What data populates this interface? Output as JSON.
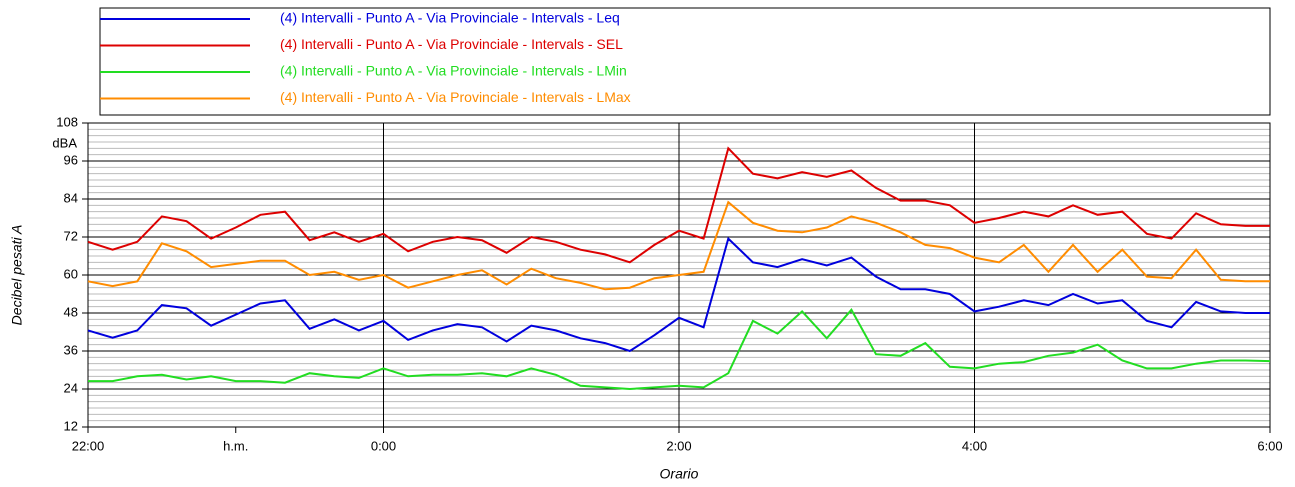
{
  "chart_data": {
    "type": "line",
    "y_label": "Decibel pesati A",
    "y_unit": "dBA",
    "x_label": "Orario",
    "x": [
      "22:00",
      "22:10",
      "22:20",
      "22:30",
      "22:40",
      "22:50",
      "23:00",
      "23:10",
      "23:20",
      "23:30",
      "23:40",
      "23:50",
      "0:00",
      "0:10",
      "0:20",
      "0:30",
      "0:40",
      "0:50",
      "1:00",
      "1:10",
      "1:20",
      "1:30",
      "1:40",
      "1:50",
      "2:00",
      "2:10",
      "2:20",
      "2:30",
      "2:40",
      "2:50",
      "3:00",
      "3:10",
      "3:20",
      "3:30",
      "3:40",
      "3:50",
      "4:00",
      "4:10",
      "4:20",
      "4:30",
      "4:40",
      "4:50",
      "5:00",
      "5:10",
      "5:20",
      "5:30",
      "5:40",
      "5:50",
      "6:00"
    ],
    "xlim": [
      "22:00",
      "6:00"
    ],
    "xticks": [
      "22:00",
      {
        "value": "23:00",
        "label": "h.m."
      },
      "0:00",
      "2:00",
      "4:00",
      "6:00"
    ],
    "ylim": [
      12,
      108
    ],
    "yticks": [
      12,
      24,
      36,
      48,
      60,
      72,
      84,
      96,
      108
    ],
    "yminor_step": 2,
    "grid": true,
    "series": [
      {
        "name": "(4) Intervalli - Punto A - Via Provinciale - Intervals - Leq",
        "color": "#0000dd",
        "values": [
          42.5,
          40.2,
          42.5,
          50.5,
          49.5,
          44,
          47.5,
          51,
          52,
          43,
          46,
          42.5,
          45.5,
          39.5,
          42.5,
          44.5,
          43.5,
          39,
          44,
          42.5,
          40,
          38.5,
          36,
          41,
          46.5,
          43.5,
          71.5,
          64,
          62.5,
          65,
          63,
          65.5,
          59.5,
          55.5,
          55.5,
          54,
          48.5,
          50,
          52,
          50.5,
          54,
          51,
          52,
          45.5,
          43.5,
          51.5,
          48.5,
          48,
          48
        ]
      },
      {
        "name": "(4) Intervalli - Punto A - Via Provinciale - Intervals - SEL",
        "color": "#dd0000",
        "values": [
          70.5,
          68,
          70.5,
          78.5,
          77,
          71.5,
          75,
          79,
          80,
          71,
          73.5,
          70.5,
          73,
          67.5,
          70.5,
          72,
          71,
          67,
          72,
          70.5,
          68,
          66.5,
          64,
          69.5,
          74,
          71.5,
          100,
          92,
          90.5,
          92.5,
          91,
          93,
          87.5,
          83.5,
          83.5,
          82,
          76.5,
          78,
          80,
          78.5,
          82,
          79,
          80,
          73,
          71.5,
          79.5,
          76,
          75.5,
          75.5
        ]
      },
      {
        "name": "(4) Intervalli - Punto A - Via Provinciale - Intervals - LMin",
        "color": "#22dd22",
        "values": [
          26.5,
          26.5,
          28,
          28.5,
          27,
          28,
          26.5,
          26.5,
          26,
          29,
          28,
          27.5,
          30.5,
          28,
          28.5,
          28.5,
          29,
          28,
          30.5,
          28.5,
          25,
          24.5,
          24,
          24.5,
          25,
          24.5,
          29,
          45.5,
          41.5,
          48.5,
          40,
          49,
          35,
          34.5,
          38.5,
          31,
          30.5,
          32,
          32.5,
          34.5,
          35.5,
          38,
          33,
          30.5,
          30.5,
          32,
          33,
          33,
          32.8
        ]
      },
      {
        "name": "(4) Intervalli - Punto A - Via Provinciale - Intervals - LMax",
        "color": "#ff8c00",
        "values": [
          58,
          56.5,
          58,
          70,
          67.5,
          62.5,
          63.5,
          64.5,
          64.5,
          60,
          61,
          58.5,
          60,
          56,
          58,
          60,
          61.5,
          57,
          62,
          59,
          57.5,
          55.5,
          56,
          59,
          60,
          61,
          83,
          76.5,
          74,
          73.5,
          75,
          78.5,
          76.5,
          73.5,
          69.5,
          68.5,
          65.5,
          64,
          69.5,
          61,
          69.5,
          61,
          68,
          59.5,
          59,
          68,
          58.5,
          58,
          58
        ]
      }
    ]
  }
}
